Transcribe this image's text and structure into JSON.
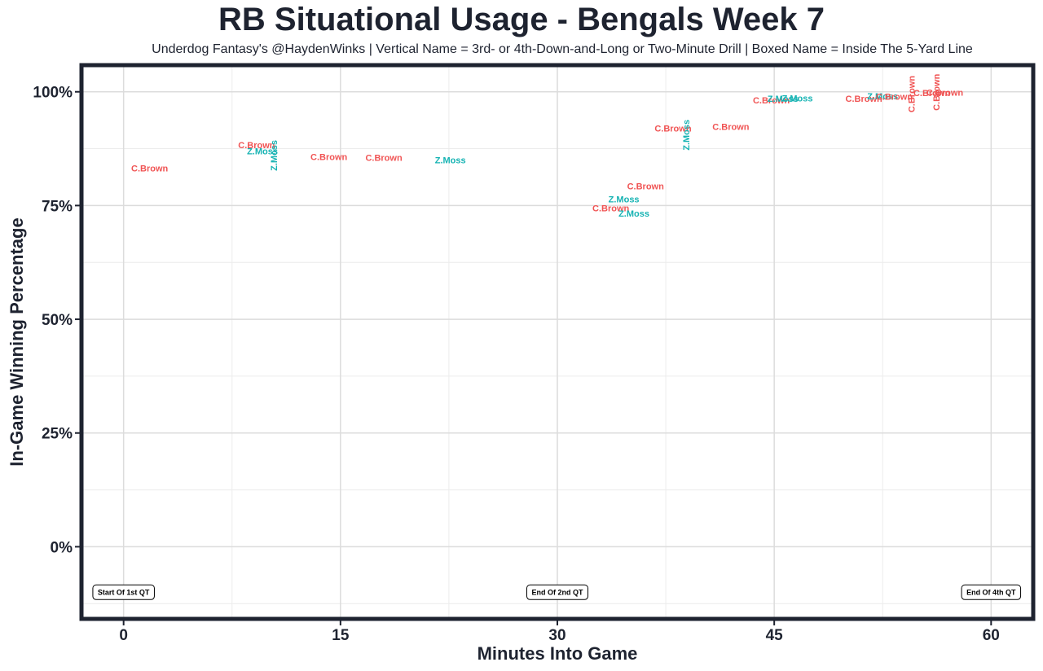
{
  "title": "RB Situational Usage - Bengals Week 7",
  "subtitle": "Underdog Fantasy's @HaydenWinks | Vertical Name = 3rd- or 4th-Down-and-Long or Two-Minute Drill | Boxed Name = Inside The 5-Yard Line",
  "chart_data": {
    "type": "scatter",
    "title": "RB Situational Usage - Bengals Week 7",
    "subtitle": "Underdog Fantasy's @HaydenWinks | Vertical Name = 3rd- or 4th-Down-and-Long or Two-Minute Drill | Boxed Name = Inside The 5-Yard Line",
    "xlabel": "Minutes Into Game",
    "ylabel": "In-Game Winning Percentage",
    "xlim": [
      -2.8,
      62.8
    ],
    "ylim": [
      -15.5,
      105.5
    ],
    "x_ticks": [
      0,
      15,
      30,
      45,
      60
    ],
    "x_tick_labels": [
      "0",
      "15",
      "30",
      "45",
      "60"
    ],
    "y_ticks": [
      0,
      25,
      50,
      75,
      100
    ],
    "y_tick_labels": [
      "0%",
      "25%",
      "50%",
      "75%",
      "100%"
    ],
    "grid": true,
    "colors": {
      "C.Brown": "#f05454",
      "Z.Moss": "#16b3b3"
    },
    "points": [
      {
        "x": 1.8,
        "y": 83.2,
        "label": "C.Brown",
        "vertical": false
      },
      {
        "x": 9.2,
        "y": 88.3,
        "label": "C.Brown",
        "vertical": false
      },
      {
        "x": 9.6,
        "y": 87.0,
        "label": "Z.Moss",
        "vertical": false
      },
      {
        "x": 10.4,
        "y": 86.0,
        "label": "Z.Moss",
        "vertical": true
      },
      {
        "x": 14.2,
        "y": 85.7,
        "label": "C.Brown",
        "vertical": false
      },
      {
        "x": 18.0,
        "y": 85.5,
        "label": "C.Brown",
        "vertical": false
      },
      {
        "x": 22.6,
        "y": 85.0,
        "label": "Z.Moss",
        "vertical": false
      },
      {
        "x": 36.1,
        "y": 79.3,
        "label": "C.Brown",
        "vertical": false
      },
      {
        "x": 34.6,
        "y": 76.4,
        "label": "Z.Moss",
        "vertical": false
      },
      {
        "x": 33.7,
        "y": 74.4,
        "label": "C.Brown",
        "vertical": false
      },
      {
        "x": 35.3,
        "y": 73.3,
        "label": "Z.Moss",
        "vertical": false
      },
      {
        "x": 38.0,
        "y": 92.0,
        "label": "C.Brown",
        "vertical": false
      },
      {
        "x": 38.9,
        "y": 90.5,
        "label": "Z.Moss",
        "vertical": true
      },
      {
        "x": 42.0,
        "y": 92.3,
        "label": "C.Brown",
        "vertical": false
      },
      {
        "x": 44.8,
        "y": 98.2,
        "label": "C.Brown",
        "vertical": false
      },
      {
        "x": 45.6,
        "y": 98.5,
        "label": "Z.Moss",
        "vertical": false
      },
      {
        "x": 46.6,
        "y": 98.6,
        "label": "Z.Moss",
        "vertical": false
      },
      {
        "x": 51.2,
        "y": 98.5,
        "label": "C.Brown",
        "vertical": false
      },
      {
        "x": 52.5,
        "y": 99.1,
        "label": "Z.Moss",
        "vertical": false
      },
      {
        "x": 53.3,
        "y": 99.0,
        "label": "C.Brown",
        "vertical": false
      },
      {
        "x": 54.5,
        "y": 99.5,
        "label": "C.Brown",
        "vertical": true
      },
      {
        "x": 55.9,
        "y": 99.8,
        "label": "C.Brown",
        "vertical": false
      },
      {
        "x": 56.2,
        "y": 99.9,
        "label": "C.Brown",
        "vertical": true
      },
      {
        "x": 56.8,
        "y": 99.9,
        "label": "C.Brown",
        "vertical": false
      }
    ],
    "annotations": [
      {
        "x": 0,
        "y": -10,
        "label": "Start Of 1st QT"
      },
      {
        "x": 30,
        "y": -10,
        "label": "End Of 2nd QT"
      },
      {
        "x": 60,
        "y": -10,
        "label": "End Of 4th QT"
      }
    ]
  }
}
